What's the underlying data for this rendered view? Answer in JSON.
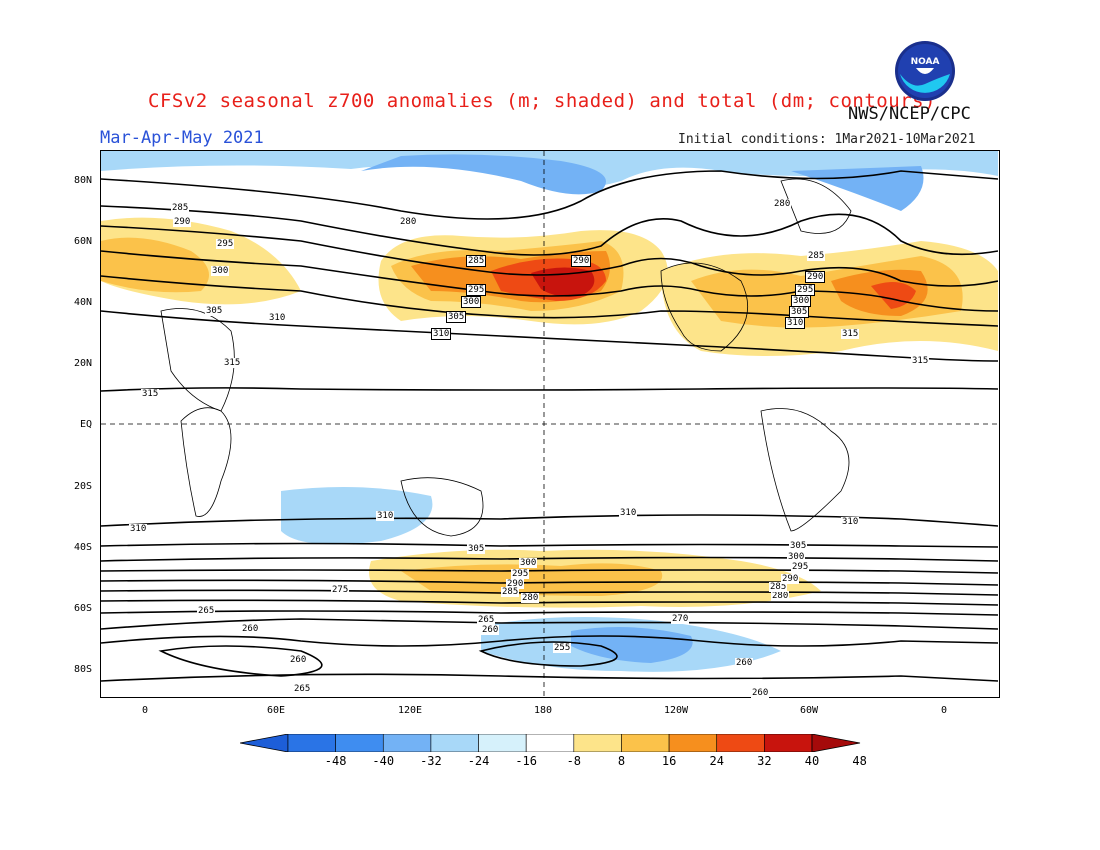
{
  "header": {
    "title": "CFSv2 seasonal z700 anomalies (m; shaded) and total (dm; contours)",
    "agency": "NWS/NCEP/CPC",
    "season": "Mar-Apr-May 2021",
    "initial_conditions": "Initial conditions: 1Mar2021-10Mar2021"
  },
  "logo": {
    "text": "NOAA",
    "icon": "noaa-logo"
  },
  "axes": {
    "lat_labels": [
      "80N",
      "60N",
      "40N",
      "20N",
      "EQ",
      "20S",
      "40S",
      "60S",
      "80S"
    ],
    "lon_labels": [
      "0",
      "60E",
      "120E",
      "180",
      "120W",
      "60W",
      "0"
    ]
  },
  "contour_labels": {
    "north": [
      "285",
      "290",
      "295",
      "300",
      "305",
      "310",
      "315",
      "315",
      "280",
      "285",
      "295",
      "300",
      "305",
      "310",
      "290",
      "280",
      "285",
      "290",
      "295",
      "300",
      "305",
      "310",
      "315",
      "315"
    ],
    "south": [
      "310",
      "310",
      "310",
      "305",
      "300",
      "295",
      "290",
      "285",
      "280",
      "275",
      "270",
      "265",
      "265",
      "260",
      "260",
      "255",
      "260",
      "265",
      "260",
      "260",
      "280",
      "285",
      "290",
      "295",
      "300",
      "305",
      "310"
    ]
  },
  "colorbar": {
    "labels": [
      "-48",
      "-40",
      "-32",
      "-24",
      "-16",
      "-8",
      "8",
      "16",
      "24",
      "32",
      "40",
      "48"
    ],
    "colors": [
      "#1d5ed8",
      "#2a74e6",
      "#3f8df0",
      "#73b2f5",
      "#a8d8f8",
      "#d6f1fb",
      "#ffffff",
      "#fde48a",
      "#fbc24a",
      "#f68f1e",
      "#ee4a14",
      "#c8140d",
      "#a50a0a"
    ]
  },
  "colors": {
    "title": "#e8201a",
    "season": "#2a52d8"
  }
}
